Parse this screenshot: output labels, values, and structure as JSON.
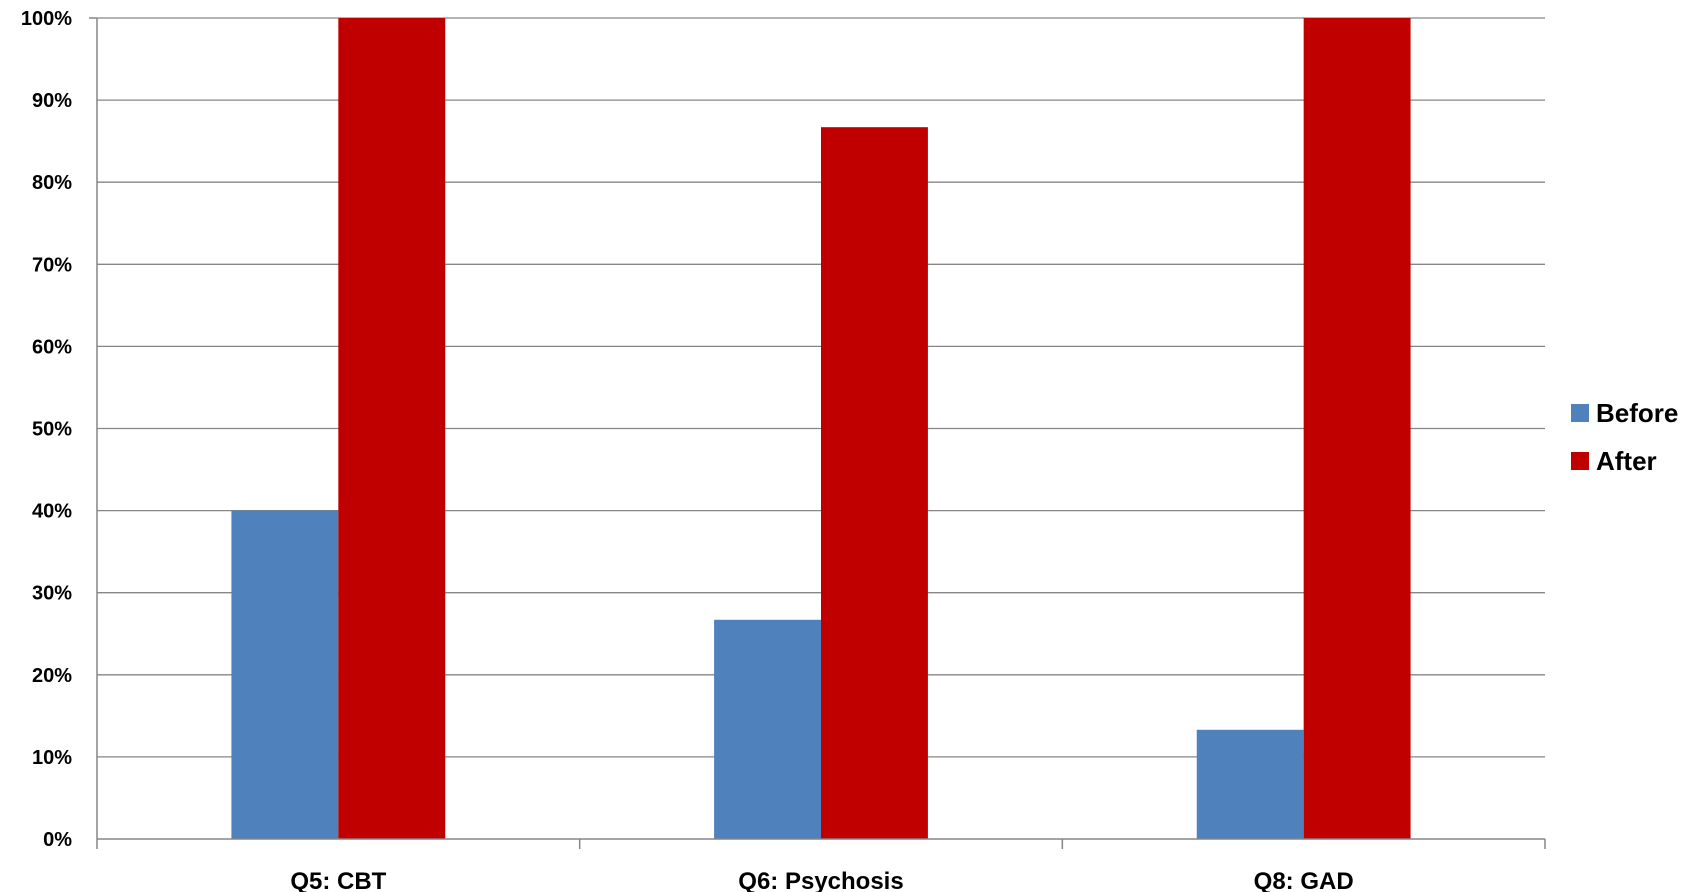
{
  "chart_data": {
    "type": "bar",
    "categories": [
      "Q5: CBT",
      "Q6: Psychosis",
      "Q8: GAD"
    ],
    "series": [
      {
        "name": "Before",
        "values": [
          40,
          26.7,
          13.3
        ],
        "color": "#4F81BD"
      },
      {
        "name": "After",
        "values": [
          100,
          86.7,
          100
        ],
        "color": "#C00000"
      }
    ],
    "ylim": [
      0,
      100
    ],
    "yticks": [
      "0%",
      "10%",
      "20%",
      "30%",
      "40%",
      "50%",
      "60%",
      "70%",
      "80%",
      "90%",
      "100%"
    ],
    "grid": true,
    "legend": "right"
  }
}
